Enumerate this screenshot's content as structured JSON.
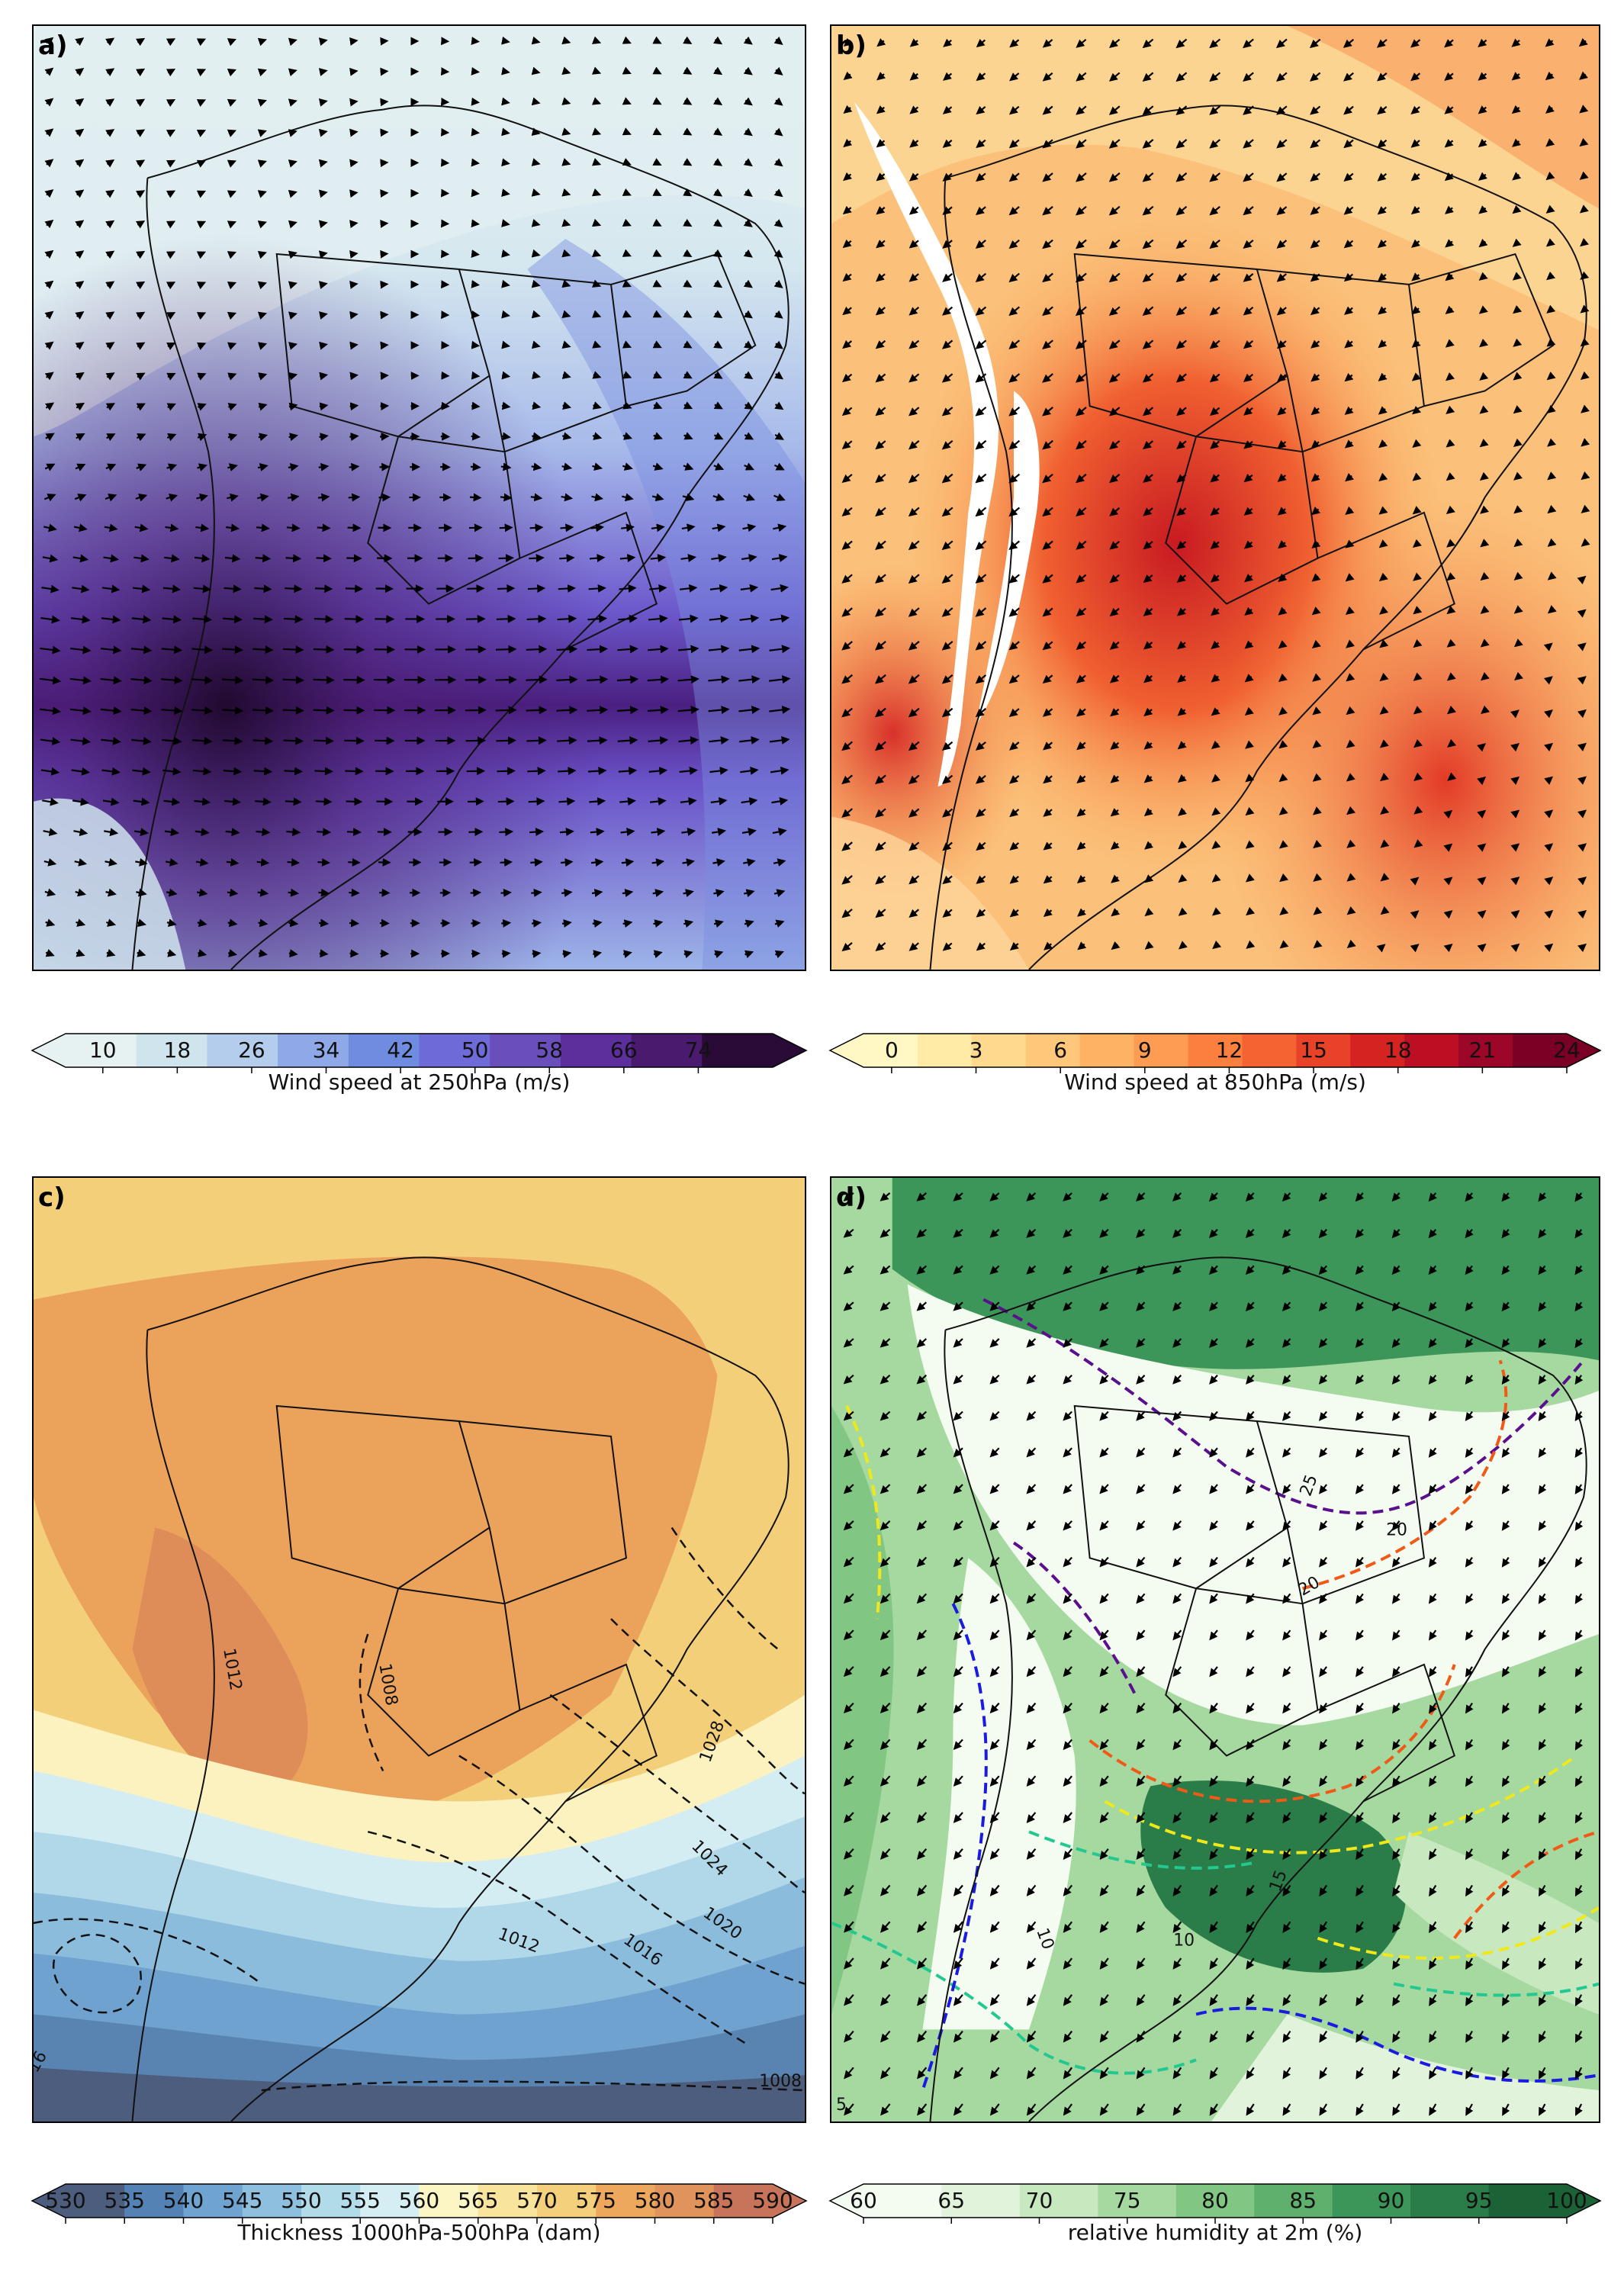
{
  "panels": [
    {
      "id": "a",
      "label": "a)",
      "field": "wind speed at 250hPa",
      "colormap": "blue-purple",
      "colorbar": {
        "label": "Wind speed at 250hPa (m/s)",
        "ticks": [
          "10",
          "18",
          "26",
          "34",
          "42",
          "50",
          "58",
          "66",
          "74"
        ],
        "range": [
          6,
          82
        ],
        "extend": "both",
        "colors": [
          "#e6f2f2",
          "#d0e4ee",
          "#b4cdec",
          "#8fa9e8",
          "#6f8ce0",
          "#6e6ad8",
          "#6a4fbc",
          "#5d2f9c",
          "#4a1a6e",
          "#2a0a36"
        ]
      }
    },
    {
      "id": "b",
      "label": "b)",
      "field": "wind speed at 850hPa",
      "colormap": "yellow-orange-red",
      "colorbar": {
        "label": "Wind speed at 850hPa (m/s)",
        "ticks": [
          "0",
          "3",
          "6",
          "9",
          "12",
          "15",
          "18",
          "21",
          "24"
        ],
        "range": [
          -1,
          24
        ],
        "extend": "both",
        "colors": [
          "#fff7c4",
          "#ffeaa6",
          "#fed98e",
          "#fec77a",
          "#feb364",
          "#fd9c52",
          "#fb8040",
          "#f46432",
          "#e84328",
          "#d42321",
          "#bc0f24",
          "#9c0628",
          "#7a0026"
        ]
      }
    },
    {
      "id": "c",
      "label": "c)",
      "field": "thickness and mean sea level pressure",
      "colormap": "diverging blue-yellow-orange",
      "contour_labels": [
        "1008",
        "1012",
        "1016",
        "1020",
        "1024",
        "1028",
        "1008",
        "1012",
        "16"
      ],
      "colorbar": {
        "label": "Thickness 1000hPa-500hPa (dam)",
        "ticks": [
          "530",
          "535",
          "540",
          "545",
          "550",
          "555",
          "560",
          "565",
          "570",
          "575",
          "580",
          "585",
          "590"
        ],
        "range": [
          530,
          590
        ],
        "extend": "both",
        "colors": [
          "#4d5d7d",
          "#5582b4",
          "#6fa4d0",
          "#8fbfdf",
          "#b2dbe9",
          "#d4eef4",
          "#fcf5c4",
          "#f9e49e",
          "#f4d07c",
          "#eea85e",
          "#e0935a",
          "#c8745a"
        ]
      }
    },
    {
      "id": "d",
      "label": "d)",
      "field": "relative humidity at 2m",
      "colormap": "greens",
      "contour_labels": [
        "20",
        "25",
        "20",
        "15",
        "10",
        "10",
        "5"
      ],
      "colorbar": {
        "label": "relative humidity at 2m (%)",
        "ticks": [
          "60",
          "65",
          "70",
          "75",
          "80",
          "85",
          "90",
          "95",
          "100"
        ],
        "range": [
          60,
          100
        ],
        "extend": "both",
        "colors": [
          "#f4fbf1",
          "#e2f3dc",
          "#c8e8c0",
          "#a6d9a0",
          "#82c683",
          "#5fb06c",
          "#3c9659",
          "#2a7c48",
          "#1b6236"
        ]
      }
    }
  ]
}
